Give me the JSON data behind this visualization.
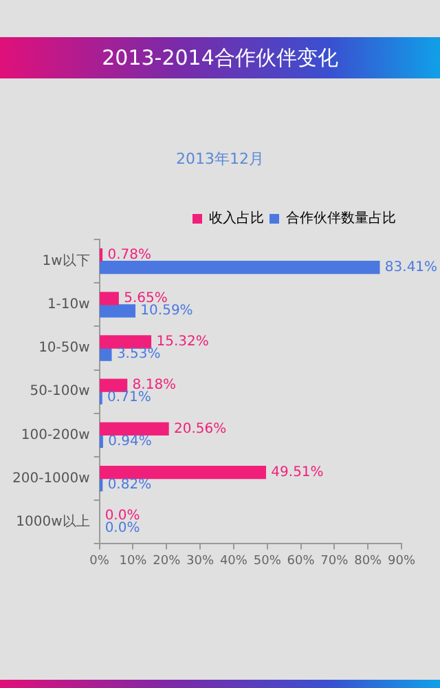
{
  "chart_data": {
    "type": "bar",
    "orientation": "horizontal",
    "title": "2013-2014合作伙伴变化",
    "subtitle": "2013年12月",
    "categories": [
      "1w以下",
      "1-10w",
      "10-50w",
      "50-100w",
      "100-200w",
      "200-1000w",
      "1000w以上"
    ],
    "series": [
      {
        "name": "收入占比",
        "color": "#f0207a",
        "values": [
          0.78,
          5.65,
          15.32,
          8.18,
          20.56,
          49.51,
          0
        ],
        "value_labels": [
          "0.78%",
          "5.65%",
          "15.32%",
          "8.18%",
          "20.56%",
          "49.51%",
          "0.0%"
        ]
      },
      {
        "name": "合作伙伴数量占比",
        "color": "#4a78e0",
        "values": [
          83.41,
          10.59,
          3.53,
          0.71,
          0.94,
          0.82,
          0
        ],
        "value_labels": [
          "83.41%",
          "10.59%",
          "3.53%",
          "0.71%",
          "0.94%",
          "0.82%",
          "0.0%"
        ]
      }
    ],
    "xlim": [
      0,
      90
    ],
    "xticks": [
      {
        "value": 0,
        "label": "0%"
      },
      {
        "value": 10,
        "label": "10%"
      },
      {
        "value": 20,
        "label": "20%"
      },
      {
        "value": 30,
        "label": "30%"
      },
      {
        "value": 40,
        "label": "40%"
      },
      {
        "value": 50,
        "label": "50%"
      },
      {
        "value": 60,
        "label": "60%"
      },
      {
        "value": 70,
        "label": "70%"
      },
      {
        "value": 80,
        "label": "80%"
      },
      {
        "value": 90,
        "label": "90%"
      }
    ],
    "grid": false,
    "legend": "top right"
  }
}
